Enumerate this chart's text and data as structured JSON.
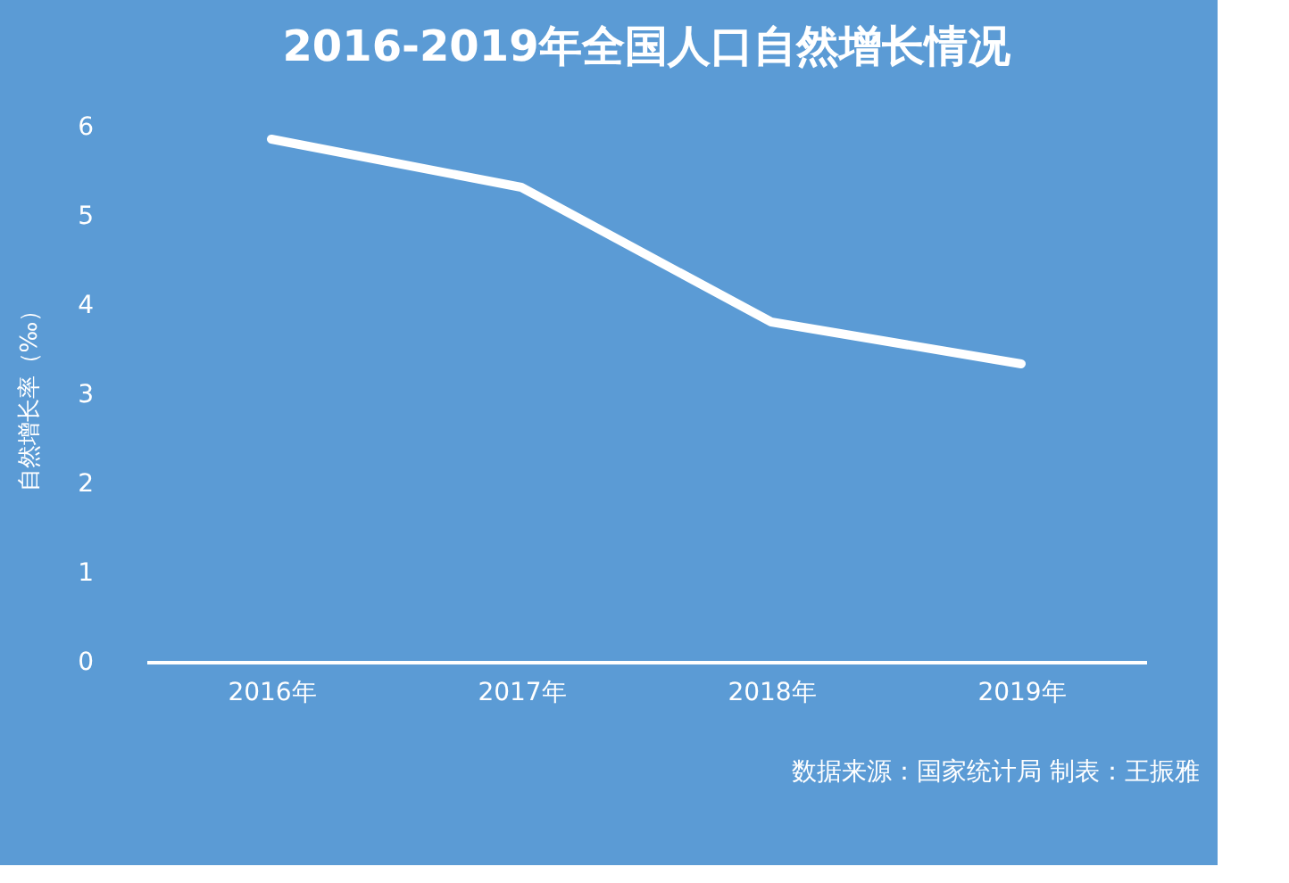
{
  "chart_data": {
    "type": "line",
    "title": "2016-2019年全国人口自然增长情况",
    "ylabel": "自然增长率（‰）",
    "categories": [
      "2016年",
      "2017年",
      "2018年",
      "2019年"
    ],
    "series": [
      {
        "color": "#ffffff",
        "values": [
          5.86,
          5.32,
          3.81,
          3.34
        ]
      }
    ],
    "ylim": [
      0,
      6
    ],
    "yticks": [
      0,
      1,
      2,
      3,
      4,
      5,
      6
    ],
    "grid": false,
    "marker": "none",
    "line_style": "solid",
    "annotations": [
      "数据来源：国家统计局 制表：王振雅"
    ]
  }
}
